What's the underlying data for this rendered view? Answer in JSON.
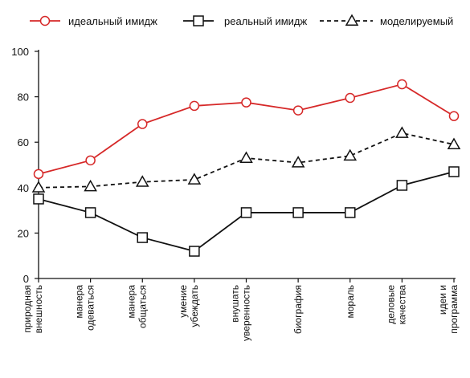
{
  "chart_data": {
    "type": "line",
    "categories": [
      [
        "природная",
        "внешность"
      ],
      [
        "манера",
        "одеваться"
      ],
      [
        "манера",
        "общаться"
      ],
      [
        "умение",
        "убеждать"
      ],
      [
        "внушать",
        "уверенность"
      ],
      [
        "биография"
      ],
      [
        "мораль"
      ],
      [
        "деловые",
        "качества"
      ],
      [
        "идеи и",
        "программа"
      ]
    ],
    "series": [
      {
        "name": "идеальный имидж",
        "marker": "circle",
        "style": "solid",
        "color": "#d62828",
        "values": [
          46,
          52,
          68,
          76,
          77.5,
          74,
          79.5,
          85.5,
          71.5
        ]
      },
      {
        "name": "реальный имидж",
        "marker": "square",
        "style": "solid",
        "color": "#111111",
        "values": [
          35,
          29,
          18,
          12,
          29,
          29,
          29,
          41,
          47
        ]
      },
      {
        "name": "моделируемый",
        "marker": "triangle",
        "style": "dashed",
        "color": "#111111",
        "values": [
          40,
          40.5,
          42.5,
          43.5,
          53,
          51,
          54,
          64,
          59
        ]
      }
    ],
    "yticks": [
      0,
      20,
      40,
      60,
      80,
      100
    ],
    "ylim": [
      0,
      100
    ],
    "grid": false,
    "legend_position": "top"
  }
}
